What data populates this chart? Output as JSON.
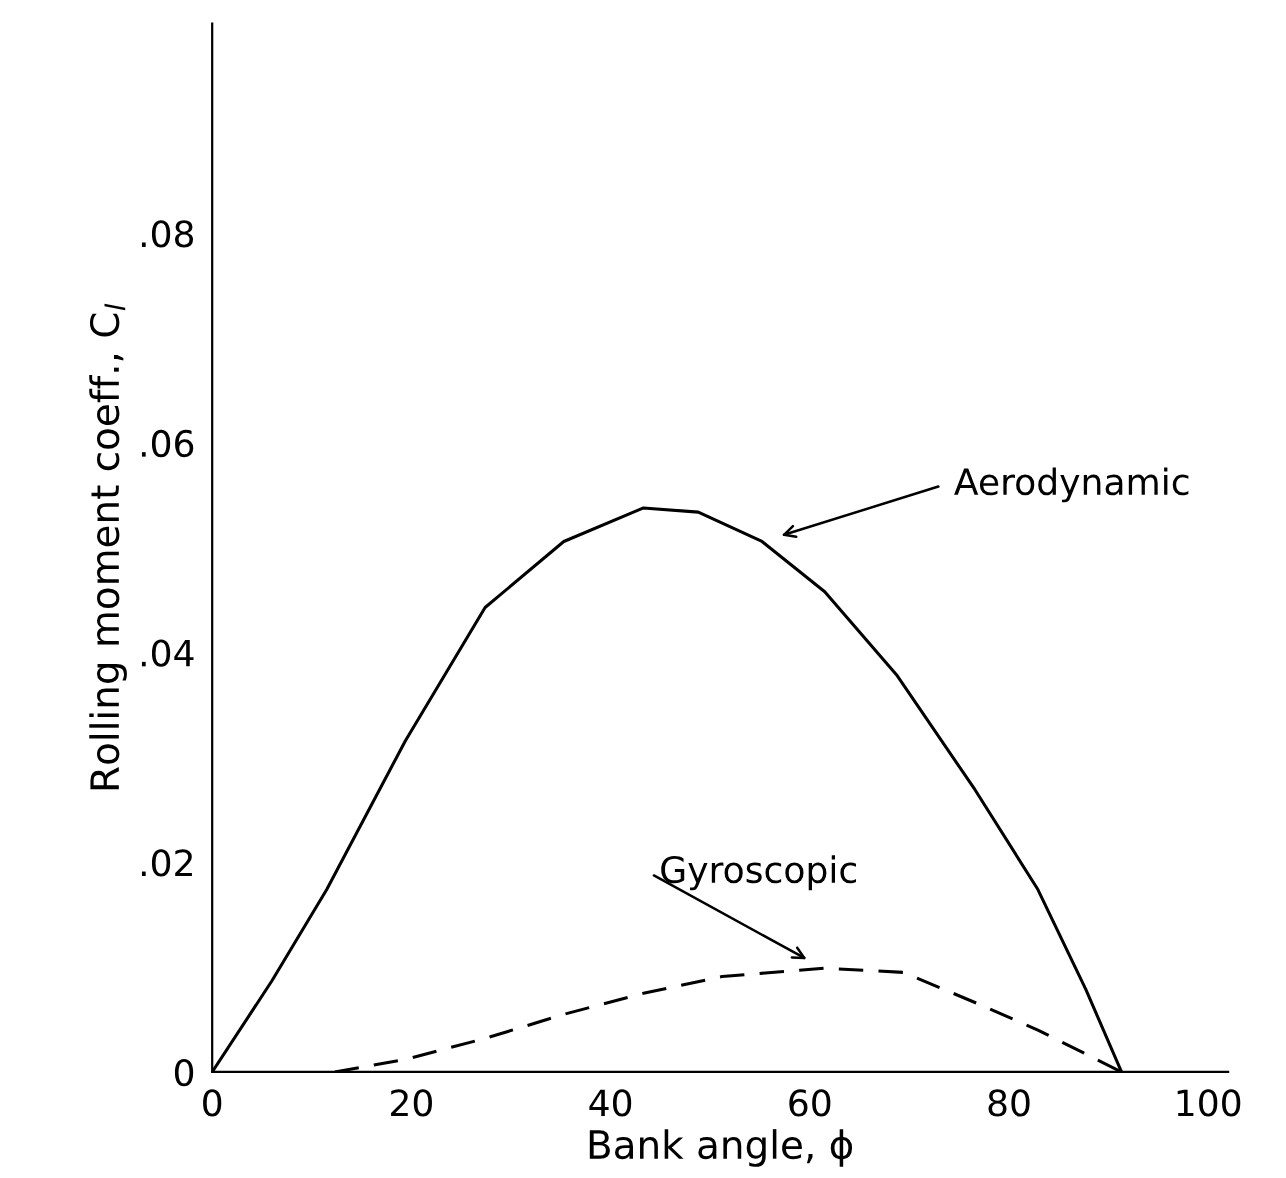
{
  "chart_data": {
    "type": "line",
    "xlabel": "Bank angle, ϕ",
    "ylabel": "Rolling moment coeff., C$_{l}$",
    "xlim": [
      0,
      102
    ],
    "ylim": [
      0,
      0.1
    ],
    "xticks": [
      0,
      20,
      40,
      60,
      80,
      100
    ],
    "yticks": [
      0,
      {
        "value": 0.02,
        "label": ".02"
      },
      {
        "value": 0.04,
        "label": ".04"
      },
      {
        "value": 0.06,
        "label": ".06"
      },
      {
        "value": 0.08,
        "label": ".08"
      }
    ],
    "grid": false,
    "legend": false,
    "marker": "none",
    "series": [
      {
        "color": "#000000",
        "line_style": "solid",
        "x": [
          0,
          6,
          11.5,
          19.4,
          27.4,
          35.3,
          43.3,
          48.8,
          55.2,
          61.5,
          68.7,
          76.6,
          82.9,
          87.7,
          91.3
        ],
        "values": [
          0,
          0.0087,
          0.0174,
          0.0316,
          0.0443,
          0.0506,
          0.0538,
          0.0534,
          0.0506,
          0.0458,
          0.0379,
          0.0269,
          0.0174,
          0.0079,
          0
        ]
      },
      {
        "color": "#000000",
        "line_style": "dashed",
        "x": [
          12.3,
          19.4,
          27.4,
          35.3,
          43.3,
          51.2,
          61.5,
          69.4,
          77.4,
          82.9,
          91.3
        ],
        "values": [
          0,
          0.0012,
          0.0032,
          0.0055,
          0.0075,
          0.0091,
          0.0099,
          0.0095,
          0.0063,
          0.004,
          0
        ]
      }
    ],
    "annotations": [
      "Aerodynamic",
      "Gyroscopic"
    ]
  }
}
